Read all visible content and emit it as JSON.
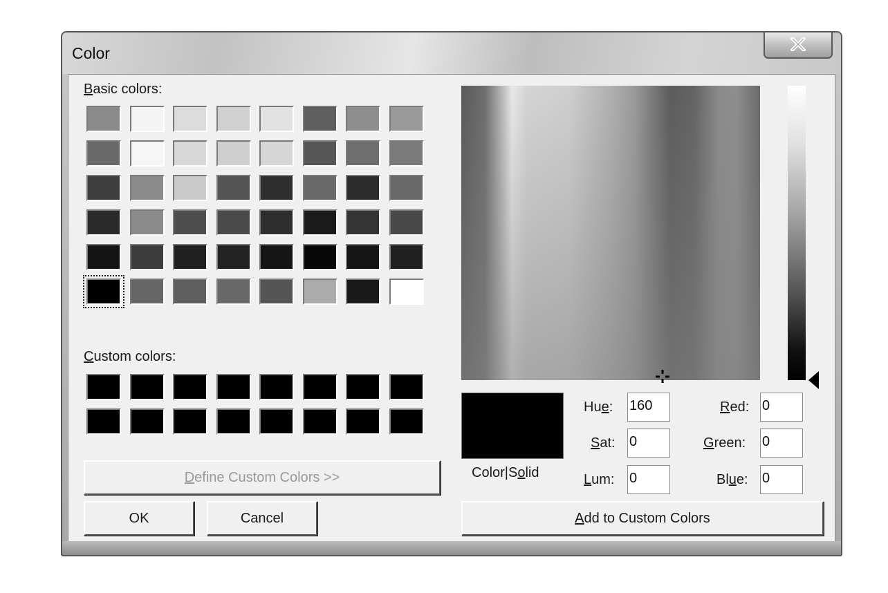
{
  "window": {
    "title": "Color"
  },
  "labels": {
    "basic_colors": {
      "u": "B",
      "rest": "asic colors:"
    },
    "custom_colors": {
      "u": "C",
      "rest": "ustom colors:"
    },
    "color_solid": {
      "a": "Color|S",
      "u": "o",
      "b": "lid"
    }
  },
  "basic_colors": [
    [
      "#8a8a8a",
      "#f4f4f4",
      "#dcdcdc",
      "#d0d0d0",
      "#e2e2e2",
      "#5e5e5e",
      "#8e8e8e",
      "#9a9a9a"
    ],
    [
      "#6a6a6a",
      "#f6f6f6",
      "#d8d8d8",
      "#cfcfcf",
      "#d6d6d6",
      "#565656",
      "#6e6e6e",
      "#7a7a7a"
    ],
    [
      "#3e3e3e",
      "#8a8a8a",
      "#cacaca",
      "#555555",
      "#2e2e2e",
      "#6a6a6a",
      "#2c2c2c",
      "#6a6a6a"
    ],
    [
      "#2a2a2a",
      "#8a8a8a",
      "#4e4e4e",
      "#4a4a4a",
      "#2e2e2e",
      "#1a1a1a",
      "#343434",
      "#484848"
    ],
    [
      "#141414",
      "#3c3c3c",
      "#202020",
      "#232323",
      "#151515",
      "#080808",
      "#151515",
      "#202020"
    ],
    [
      "#000000",
      "#666666",
      "#5e5e5e",
      "#686868",
      "#555555",
      "#ababab",
      "#191919",
      "#ffffff"
    ]
  ],
  "selected_basic": {
    "row": 5,
    "col": 0
  },
  "custom_colors": [
    [
      "#000000",
      "#000000",
      "#000000",
      "#000000",
      "#000000",
      "#000000",
      "#000000",
      "#000000"
    ],
    [
      "#000000",
      "#000000",
      "#000000",
      "#000000",
      "#000000",
      "#000000",
      "#000000",
      "#000000"
    ]
  ],
  "buttons": {
    "define_custom": {
      "u": "D",
      "rest": "efine Custom Colors >>"
    },
    "ok": "OK",
    "cancel": "Cancel",
    "add_custom": {
      "u": "A",
      "rest": "dd to Custom Colors"
    }
  },
  "fields": {
    "hue": {
      "pre": "Hu",
      "u": "e",
      "post": ":",
      "value": "160"
    },
    "sat": {
      "pre": "",
      "u": "S",
      "post": "at:",
      "value": "0"
    },
    "lum": {
      "pre": "",
      "u": "L",
      "post": "um:",
      "value": "0"
    },
    "red": {
      "pre": "",
      "u": "R",
      "post": "ed:",
      "value": "0"
    },
    "green": {
      "pre": "",
      "u": "G",
      "post": "reen:",
      "value": "0"
    },
    "blue": {
      "pre": "Bl",
      "u": "u",
      "post": "e:",
      "value": "0"
    }
  }
}
